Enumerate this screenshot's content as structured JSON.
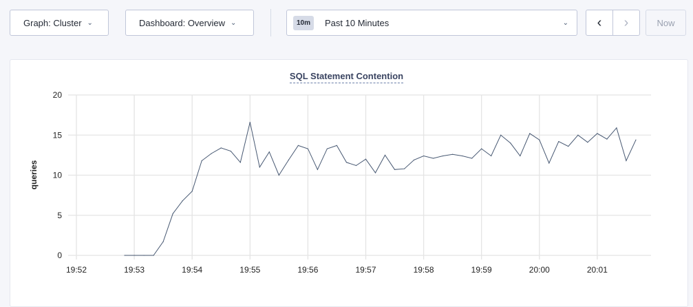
{
  "toolbar": {
    "graph_label": "Graph: Cluster",
    "dashboard_label": "Dashboard: Overview",
    "time_badge": "10m",
    "time_label": "Past 10 Minutes",
    "prev_icon": "chevron-left-icon",
    "next_icon": "chevron-right-icon",
    "now_label": "Now"
  },
  "chart_data": {
    "type": "line",
    "title": "SQL Statement Contention",
    "ylabel": "queries",
    "xlabel": "",
    "ylim": [
      0,
      20
    ],
    "yticks": [
      "0",
      "5",
      "10",
      "15",
      "20"
    ],
    "xticks": [
      "19:52",
      "19:53",
      "19:54",
      "19:55",
      "19:56",
      "19:57",
      "19:58",
      "19:59",
      "20:00",
      "20:01"
    ],
    "grid": true,
    "line_color": "#475872",
    "series": [
      {
        "x": [
          "19:52:50",
          "19:53:00",
          "19:53:10",
          "19:53:20",
          "19:53:30",
          "19:53:40",
          "19:53:50",
          "19:54:00",
          "19:54:10",
          "19:54:20",
          "19:54:30",
          "19:54:40",
          "19:54:50",
          "19:55:00",
          "19:55:10",
          "19:55:20",
          "19:55:30",
          "19:55:40",
          "19:55:50",
          "19:56:00",
          "19:56:10",
          "19:56:20",
          "19:56:30",
          "19:56:40",
          "19:56:50",
          "19:57:00",
          "19:57:10",
          "19:57:20",
          "19:57:30",
          "19:57:40",
          "19:57:50",
          "19:58:00",
          "19:58:10",
          "19:58:20",
          "19:58:30",
          "19:58:40",
          "19:58:50",
          "19:59:00",
          "19:59:10",
          "19:59:20",
          "19:59:30",
          "19:59:40",
          "19:59:50",
          "20:00:00",
          "20:00:10",
          "20:00:20",
          "20:00:30",
          "20:00:40",
          "20:00:50",
          "20:01:00",
          "20:01:10",
          "20:01:20",
          "20:01:30",
          "20:01:40"
        ],
        "y": [
          0,
          0,
          0,
          0,
          1.7,
          5.2,
          6.8,
          8.0,
          11.8,
          12.7,
          13.4,
          13.0,
          11.6,
          16.6,
          11.0,
          12.9,
          10.0,
          11.9,
          13.7,
          13.3,
          10.7,
          13.3,
          13.7,
          11.6,
          11.2,
          12.0,
          10.3,
          12.5,
          10.7,
          10.8,
          11.9,
          12.4,
          12.1,
          12.4,
          12.6,
          12.4,
          12.1,
          13.3,
          12.4,
          15.0,
          14.0,
          12.4,
          15.2,
          14.4,
          11.5,
          14.2,
          13.6,
          15.0,
          14.1,
          15.2,
          14.5,
          15.9,
          11.8,
          14.4
        ]
      }
    ]
  }
}
